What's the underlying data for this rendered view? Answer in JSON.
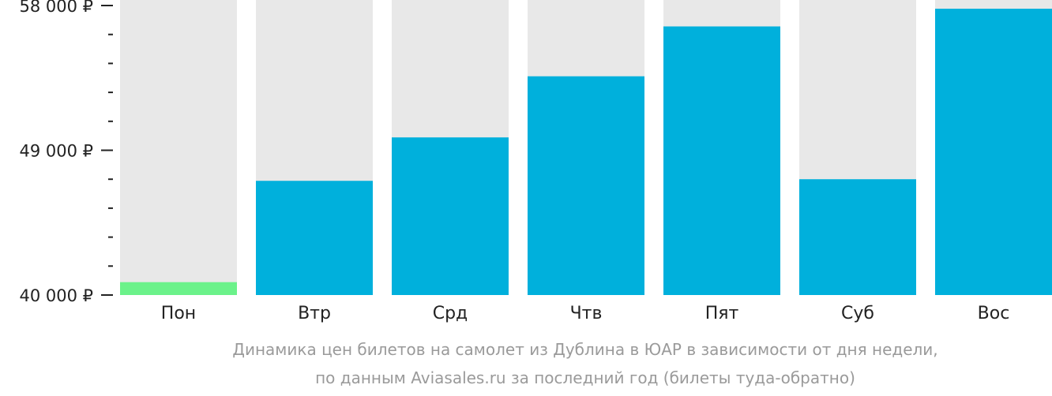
{
  "chart_data": {
    "type": "bar",
    "categories": [
      "Пон",
      "Втр",
      "Срд",
      "Чтв",
      "Пят",
      "Суб",
      "Вос"
    ],
    "values": [
      40800,
      47100,
      49800,
      53600,
      56700,
      47200,
      57800
    ],
    "ylim": [
      40000,
      58000
    ],
    "yticks": [
      {
        "value": 40000,
        "label": "40 000 ₽"
      },
      {
        "value": 49000,
        "label": "49 000 ₽"
      },
      {
        "value": 58000,
        "label": "58 000 ₽"
      }
    ],
    "minor_step": 1800,
    "highlight_index": 0,
    "colors": {
      "bar": "#00b0dc",
      "highlight": "#6bf28a",
      "background": "#e8e8e8",
      "axis": "#222222"
    }
  },
  "caption": {
    "line1": "Динамика цен билетов на самолет из Дублина в ЮАР в зависимости от дня недели,",
    "line2": "по данным Aviasales.ru за последний год (билеты туда-обратно)"
  }
}
